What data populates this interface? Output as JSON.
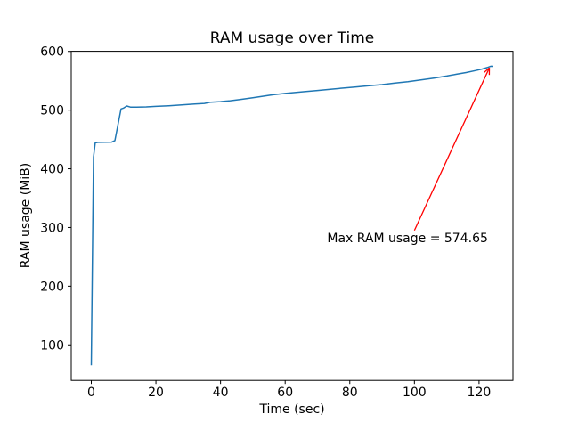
{
  "figure": {
    "background": "#ffffff",
    "frame_color": "#000000"
  },
  "chart_data": {
    "type": "line",
    "title": "RAM usage over Time",
    "xlabel": "Time (sec)",
    "ylabel": "RAM usage (MiB)",
    "xlim": [
      -6.2,
      130.5
    ],
    "ylim": [
      39.4,
      600.2
    ],
    "xticks": [
      0,
      20,
      40,
      60,
      80,
      100,
      120
    ],
    "yticks": [
      100,
      200,
      300,
      400,
      500,
      600
    ],
    "grid": false,
    "legend": null,
    "series": [
      {
        "name": "RAM usage",
        "color": "#1f77b4",
        "points": [
          [
            0,
            65
          ],
          [
            0.7,
            420
          ],
          [
            1.2,
            444
          ],
          [
            2,
            445
          ],
          [
            6.3,
            445.5
          ],
          [
            7.3,
            448
          ],
          [
            9.2,
            502
          ],
          [
            10,
            503.5
          ],
          [
            11,
            507
          ],
          [
            12.2,
            505
          ],
          [
            14,
            505
          ],
          [
            17,
            505.5
          ],
          [
            20,
            506.5
          ],
          [
            24,
            507.5
          ],
          [
            28,
            509
          ],
          [
            32,
            510.5
          ],
          [
            35,
            511.5
          ],
          [
            37,
            513.5
          ],
          [
            40,
            514.5
          ],
          [
            43,
            516
          ],
          [
            46,
            518
          ],
          [
            50,
            521
          ],
          [
            53,
            523.5
          ],
          [
            56,
            526
          ],
          [
            60,
            528.5
          ],
          [
            63,
            530
          ],
          [
            66,
            531.5
          ],
          [
            70,
            533.5
          ],
          [
            74,
            535.5
          ],
          [
            78,
            537.5
          ],
          [
            82,
            539.5
          ],
          [
            86,
            541.5
          ],
          [
            90,
            543.5
          ],
          [
            94,
            546
          ],
          [
            98,
            548.5
          ],
          [
            102,
            551.5
          ],
          [
            106,
            554.5
          ],
          [
            110,
            558
          ],
          [
            113,
            561
          ],
          [
            116,
            564
          ],
          [
            119,
            567.5
          ],
          [
            121,
            570
          ],
          [
            122.5,
            572.5
          ],
          [
            123.6,
            574.65
          ],
          [
            124.3,
            574.6
          ]
        ]
      }
    ],
    "annotation": {
      "label": "Max RAM usage = 574.65",
      "color": "#ff0000",
      "max_value": 574.65,
      "text_xy": [
        73,
        275
      ],
      "arrow_from": [
        100,
        295
      ],
      "arrow_to": [
        123.2,
        572
      ]
    }
  }
}
